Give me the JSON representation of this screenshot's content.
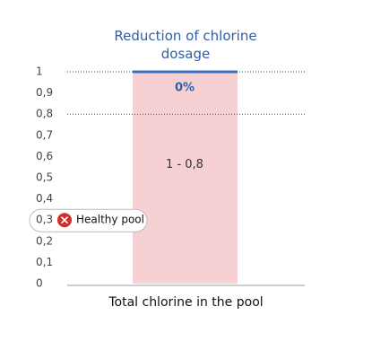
{
  "chart_data": {
    "type": "bar",
    "title": "Reduction of chlorine dosage",
    "categories": [
      "Total chlorine in the pool"
    ],
    "values": [
      1
    ],
    "color": "#f7d0d3",
    "ylim": [
      0,
      1
    ],
    "yticks": [
      0,
      {
        "value": 0.1,
        "label": "0,1"
      },
      {
        "value": 0.2,
        "label": "0,2"
      },
      {
        "value": 0.3,
        "label": "0,3"
      },
      {
        "value": 0.4,
        "label": "0,4"
      },
      {
        "value": 0.5,
        "label": "0,5"
      },
      {
        "value": 0.6,
        "label": "0,6"
      },
      {
        "value": 0.7,
        "label": "0,7"
      },
      {
        "value": 0.8,
        "label": "0,8"
      },
      {
        "value": 0.9,
        "label": "0,9"
      },
      1
    ],
    "range": [
      0.8,
      1
    ],
    "range_label": "1 - 0,8",
    "reduction": {
      "value": 0,
      "label": "0%"
    },
    "reference_line": {
      "value": 0.3,
      "label": "Healthy pool"
    }
  }
}
